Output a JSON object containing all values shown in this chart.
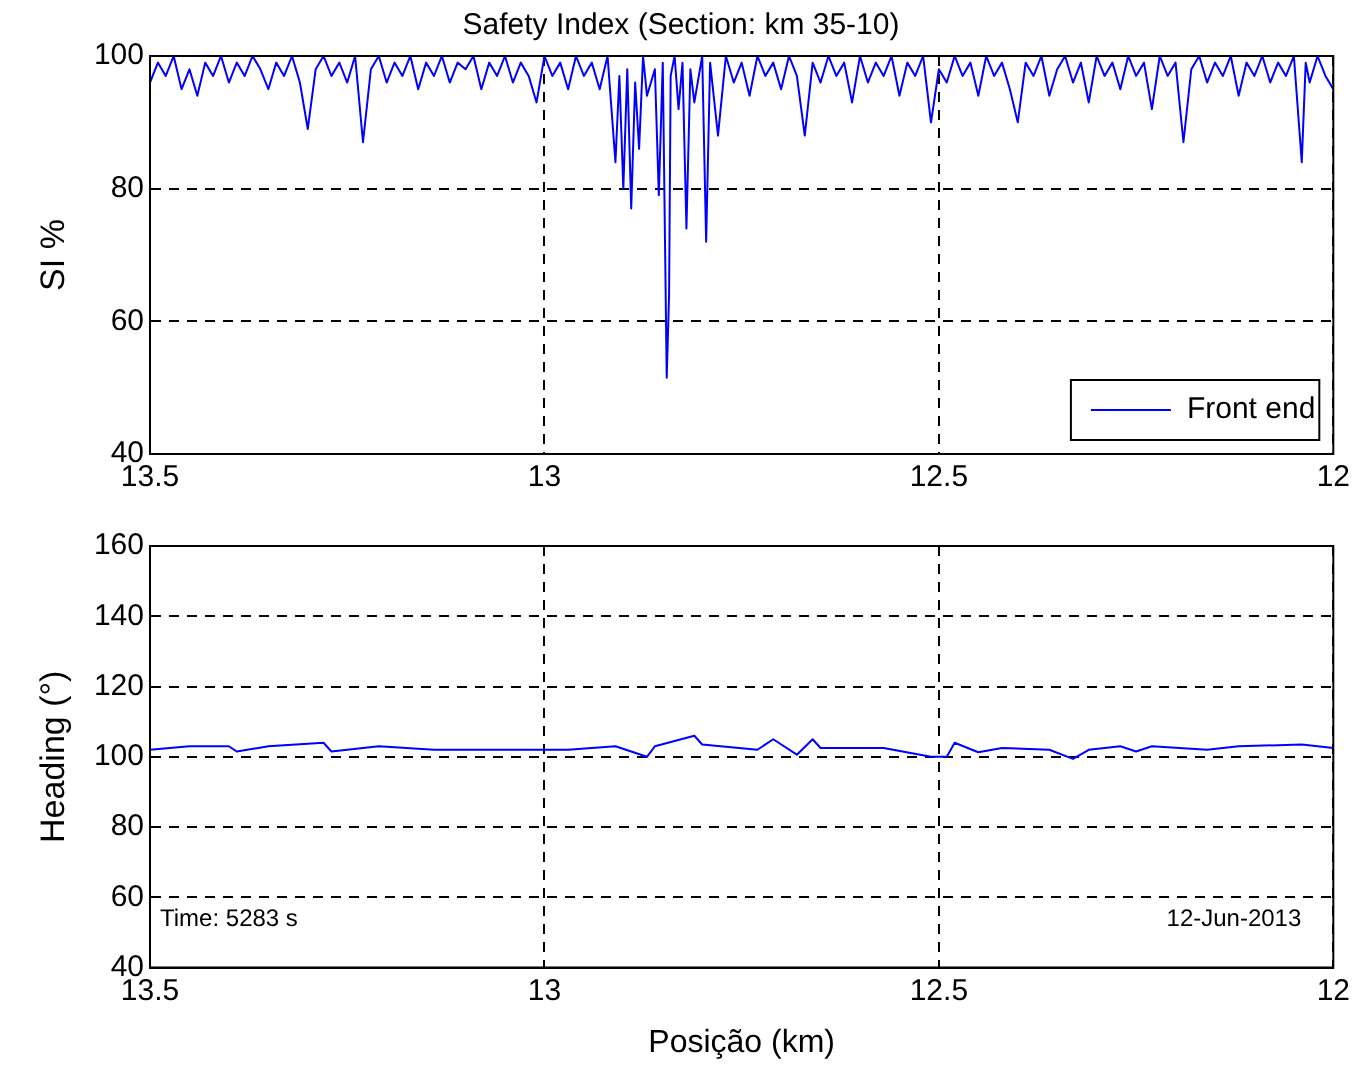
{
  "chart_data": [
    {
      "type": "line",
      "title": "Safety Index (Section: km 35-10)",
      "ylabel": "SI %",
      "xlim": [
        13.5,
        12
      ],
      "xticks": [
        13.5,
        13,
        12.5,
        12
      ],
      "ylim": [
        40,
        100
      ],
      "yticks": [
        40,
        60,
        80,
        100
      ],
      "grid": true,
      "legend": "bottom right",
      "marker": "none",
      "line_style": "solid",
      "series": [
        {
          "name": "Front end",
          "color": "#0000ff",
          "x": [
            13.5,
            13.49,
            13.48,
            13.47,
            13.46,
            13.45,
            13.44,
            13.43,
            13.42,
            13.41,
            13.4,
            13.39,
            13.38,
            13.37,
            13.36,
            13.35,
            13.34,
            13.33,
            13.32,
            13.31,
            13.3,
            13.29,
            13.28,
            13.27,
            13.26,
            13.25,
            13.24,
            13.23,
            13.22,
            13.21,
            13.2,
            13.19,
            13.18,
            13.17,
            13.16,
            13.15,
            13.14,
            13.13,
            13.12,
            13.11,
            13.1,
            13.09,
            13.08,
            13.07,
            13.06,
            13.05,
            13.04,
            13.03,
            13.02,
            13.01,
            13.0,
            12.99,
            12.98,
            12.97,
            12.96,
            12.95,
            12.94,
            12.93,
            12.92,
            12.91,
            12.905,
            12.9,
            12.895,
            12.89,
            12.885,
            12.88,
            12.875,
            12.87,
            12.86,
            12.855,
            12.85,
            12.845,
            12.842,
            12.84,
            12.835,
            12.83,
            12.825,
            12.82,
            12.815,
            12.81,
            12.8,
            12.795,
            12.79,
            12.78,
            12.77,
            12.76,
            12.75,
            12.74,
            12.73,
            12.72,
            12.71,
            12.7,
            12.69,
            12.68,
            12.67,
            12.66,
            12.65,
            12.64,
            12.63,
            12.62,
            12.61,
            12.6,
            12.59,
            12.58,
            12.57,
            12.56,
            12.55,
            12.54,
            12.53,
            12.52,
            12.51,
            12.5,
            12.49,
            12.48,
            12.47,
            12.46,
            12.45,
            12.44,
            12.43,
            12.42,
            12.41,
            12.4,
            12.39,
            12.38,
            12.37,
            12.36,
            12.35,
            12.34,
            12.33,
            12.32,
            12.31,
            12.3,
            12.29,
            12.28,
            12.27,
            12.26,
            12.25,
            12.24,
            12.23,
            12.22,
            12.21,
            12.2,
            12.19,
            12.18,
            12.17,
            12.16,
            12.15,
            12.14,
            12.13,
            12.12,
            12.11,
            12.1,
            12.09,
            12.08,
            12.07,
            12.06,
            12.05,
            12.04,
            12.035,
            12.03,
            12.02,
            12.01,
            12.0
          ],
          "values": [
            96,
            99,
            97,
            100,
            95,
            98,
            94,
            99,
            97,
            100,
            96,
            99,
            97,
            100,
            98,
            95,
            99,
            97,
            100,
            96,
            89,
            98,
            100,
            97,
            99,
            96,
            100,
            87,
            98,
            100,
            96,
            99,
            97,
            100,
            95,
            99,
            97,
            100,
            96,
            99,
            98,
            100,
            95,
            99,
            97,
            100,
            96,
            99,
            97,
            93,
            100,
            97,
            99,
            95,
            100,
            97,
            99,
            95,
            100,
            84,
            97,
            80,
            98,
            77,
            96,
            86,
            100,
            94,
            98,
            79,
            99,
            51.5,
            64,
            97,
            100,
            92,
            99,
            74,
            98,
            93,
            100,
            72,
            99,
            88,
            100,
            96,
            99,
            94,
            100,
            97,
            99,
            95,
            100,
            97,
            88,
            99,
            96,
            100,
            97,
            99,
            93,
            100,
            96,
            99,
            97,
            100,
            94,
            99,
            97,
            100,
            90,
            98,
            96,
            100,
            97,
            99,
            94,
            100,
            97,
            99,
            95,
            90,
            99,
            97,
            100,
            94,
            98,
            100,
            96,
            99,
            93,
            100,
            97,
            99,
            95,
            100,
            97,
            99,
            92,
            100,
            97,
            99,
            87,
            98,
            100,
            96,
            99,
            97,
            100,
            94,
            99,
            97,
            100,
            96,
            99,
            97,
            100,
            84,
            99,
            96,
            100,
            97,
            95
          ]
        }
      ]
    },
    {
      "type": "line",
      "xlabel": "Posição (km)",
      "ylabel": "Heading (°)",
      "xlim": [
        13.5,
        12
      ],
      "xticks": [
        13.5,
        13,
        12.5,
        12
      ],
      "ylim": [
        40,
        160
      ],
      "yticks": [
        40,
        60,
        80,
        100,
        120,
        140,
        160
      ],
      "grid": true,
      "marker": "none",
      "line_style": "solid",
      "annotations": [
        "Time: 5283 s",
        "12-Jun-2013"
      ],
      "series": [
        {
          "color": "#0000ff",
          "x": [
            13.5,
            13.45,
            13.4,
            13.39,
            13.35,
            13.28,
            13.27,
            13.21,
            13.14,
            13.09,
            12.97,
            12.91,
            12.87,
            12.86,
            12.81,
            12.8,
            12.73,
            12.71,
            12.68,
            12.66,
            12.65,
            12.57,
            12.51,
            12.49,
            12.48,
            12.45,
            12.42,
            12.36,
            12.33,
            12.31,
            12.27,
            12.25,
            12.23,
            12.16,
            12.12,
            12.04,
            12.0
          ],
          "values": [
            102,
            103,
            103,
            101.5,
            103,
            104,
            101.5,
            103,
            102,
            102,
            102,
            103,
            100,
            103,
            106,
            103.5,
            102,
            105,
            100.6,
            105,
            102.5,
            102.5,
            100,
            100,
            104,
            101.3,
            102.5,
            102,
            99.4,
            102,
            103,
            101.5,
            103,
            102,
            103,
            103.5,
            102.5
          ]
        }
      ]
    }
  ]
}
